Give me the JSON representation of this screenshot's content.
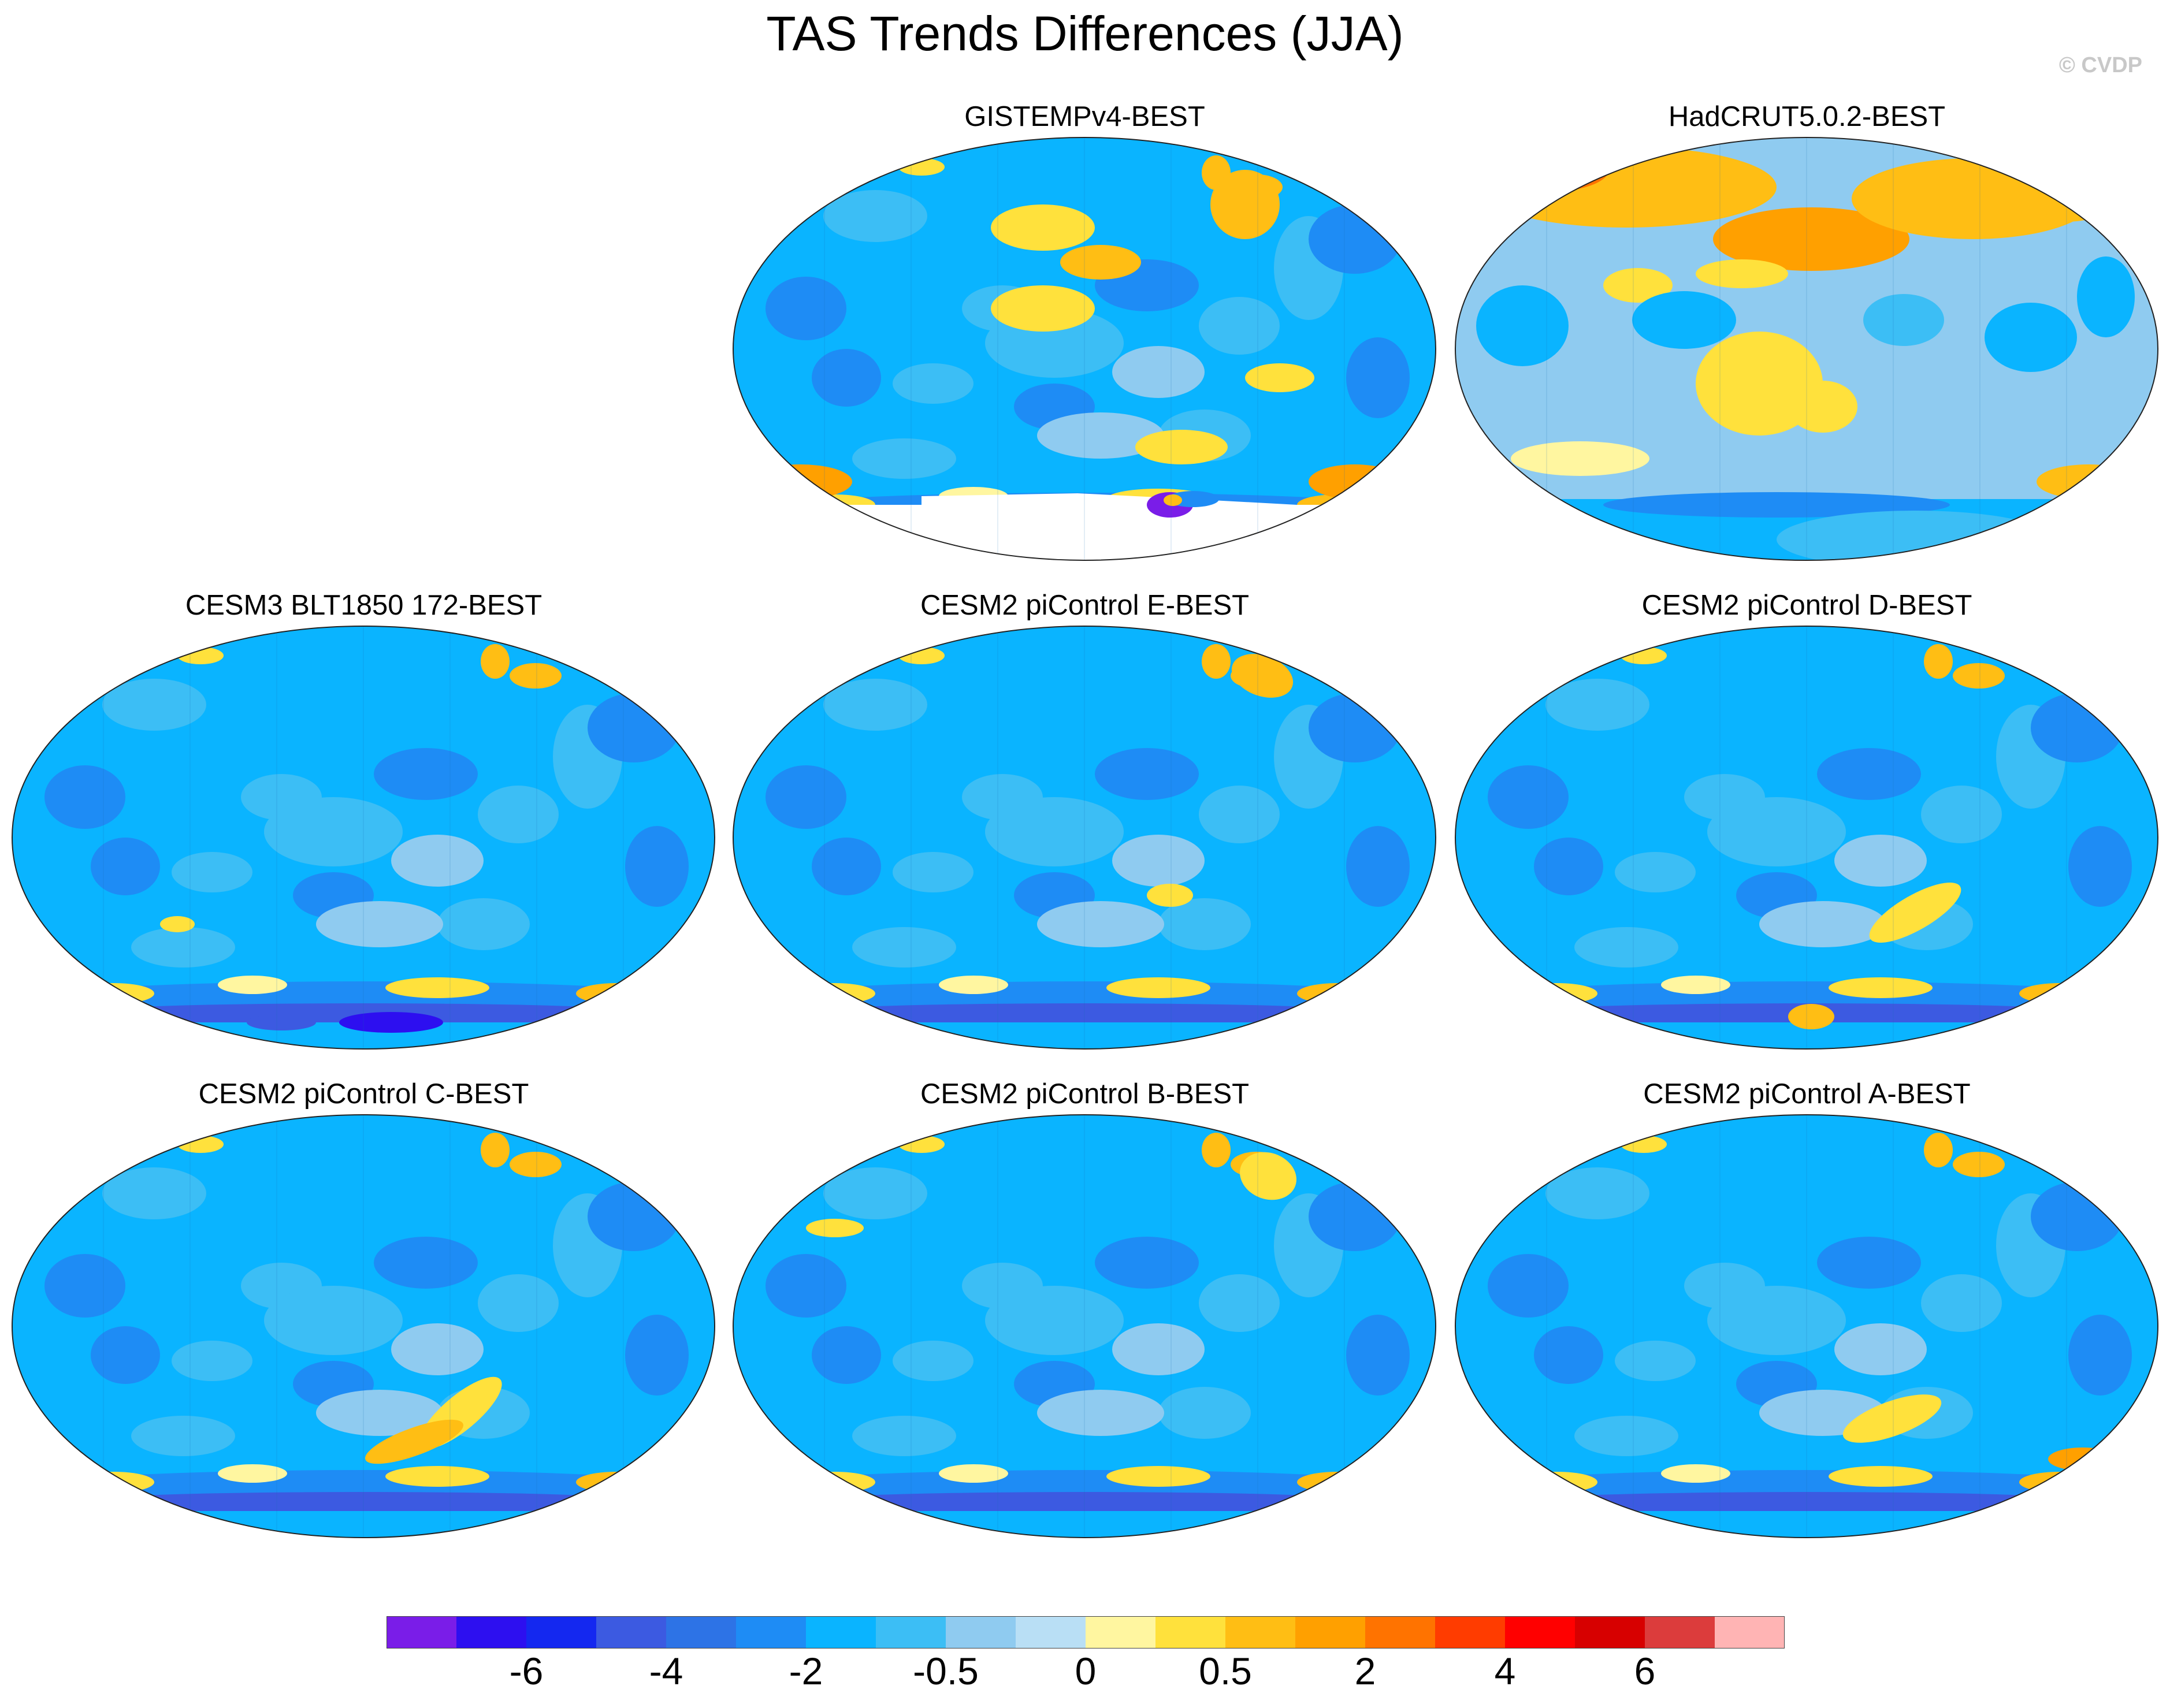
{
  "figure": {
    "title": "TAS Trends Differences (JJA)",
    "credit": "© CVDP"
  },
  "panels": [
    {
      "title": "GISTEMPv4-BEST",
      "ocean": "#0ab4ff",
      "missing_polar": true
    },
    {
      "title": "HadCRUT5.0.2-BEST",
      "ocean": "#8fcbf0",
      "warm_north": true,
      "missing_polar": true
    },
    {
      "title": "CESM3 BLT1850 172-BEST",
      "ocean": "#0ab4ff"
    },
    {
      "title": "CESM2 piControl E-BEST",
      "ocean": "#0ab4ff"
    },
    {
      "title": "CESM2 piControl D-BEST",
      "ocean": "#0ab4ff"
    },
    {
      "title": "CESM2 piControl C-BEST",
      "ocean": "#0ab4ff"
    },
    {
      "title": "CESM2 piControl B-BEST",
      "ocean": "#0ab4ff"
    },
    {
      "title": "CESM2 piControl A-BEST",
      "ocean": "#0ab4ff"
    }
  ],
  "colorbar": {
    "colors": [
      "#7a1de8",
      "#2d0ff0",
      "#1428f0",
      "#3c5ae1",
      "#2d73e6",
      "#1e8cf5",
      "#0ab4ff",
      "#3cbef5",
      "#8fcbf0",
      "#b9dff5",
      "#fff6a0",
      "#ffe13c",
      "#ffbe14",
      "#ffa000",
      "#ff7300",
      "#ff3c00",
      "#ff0000",
      "#d70000",
      "#dc3c3c",
      "#ffb4b4"
    ],
    "labels": [
      {
        "text": "-6",
        "boundary": 2
      },
      {
        "text": "-4",
        "boundary": 4
      },
      {
        "text": "-2",
        "boundary": 6
      },
      {
        "text": "-0.5",
        "boundary": 8
      },
      {
        "text": "0",
        "boundary": 10
      },
      {
        "text": "0.5",
        "boundary": 12
      },
      {
        "text": "2",
        "boundary": 14
      },
      {
        "text": "4",
        "boundary": 16
      },
      {
        "text": "6",
        "boundary": 18
      }
    ]
  }
}
